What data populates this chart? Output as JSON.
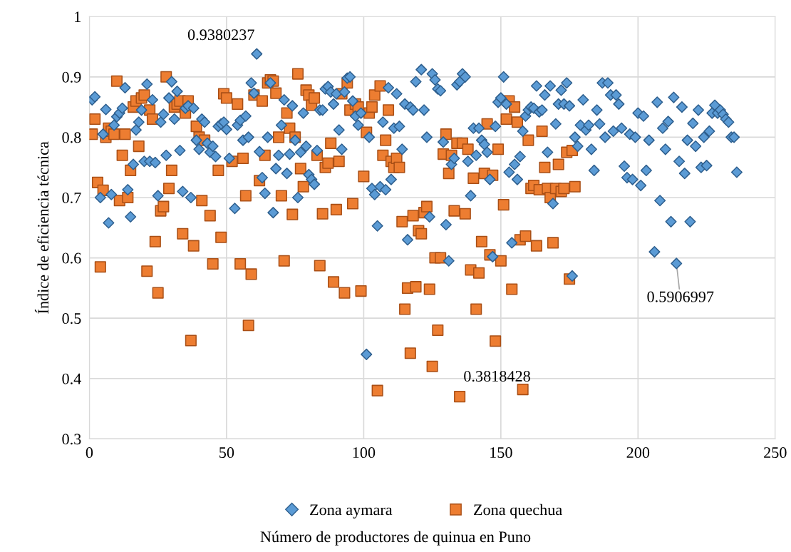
{
  "chart_data": {
    "type": "scatter",
    "xlabel": "Número de productores de quinua en Puno",
    "ylabel": "Índice de eficiencia técnica",
    "xlim": [
      0,
      250
    ],
    "xticks": [
      0,
      50,
      100,
      150,
      200,
      250
    ],
    "ylim": [
      0.3,
      1
    ],
    "yticks": [
      0.3,
      0.4,
      0.5,
      0.6,
      0.7,
      0.8,
      0.9,
      1
    ],
    "grid": true,
    "legend": "bottom",
    "annotations": [
      {
        "text": "0.9380237",
        "x": 61,
        "y": 0.9380237
      },
      {
        "text": "0.3818428",
        "x": 158,
        "y": 0.3818428
      },
      {
        "text": "0.5906997",
        "x": 214,
        "y": 0.5906997
      }
    ],
    "series": [
      {
        "name": "Zona aymara",
        "color": "#5b9bd5",
        "marker": "diamond",
        "x": [
          1,
          2,
          4,
          5,
          6,
          7,
          8,
          9,
          10,
          11,
          12,
          13,
          14,
          15,
          16,
          17,
          18,
          19,
          20,
          21,
          22,
          23,
          24,
          25,
          26,
          27,
          28,
          29,
          30,
          31,
          32,
          33,
          34,
          35,
          36,
          37,
          38,
          39,
          40,
          41,
          42,
          43,
          44,
          45,
          46,
          47,
          48,
          49,
          50,
          51,
          53,
          54,
          55,
          56,
          57,
          58,
          59,
          60,
          61,
          62,
          63,
          64,
          65,
          66,
          67,
          68,
          69,
          70,
          71,
          72,
          73,
          74,
          75,
          76,
          77,
          78,
          79,
          80,
          81,
          82,
          83,
          84,
          85,
          86,
          87,
          88,
          89,
          90,
          91,
          92,
          93,
          94,
          95,
          96,
          97,
          98,
          99,
          101,
          102,
          103,
          104,
          105,
          106,
          107,
          108,
          109,
          110,
          111,
          112,
          113,
          114,
          115,
          116,
          117,
          118,
          119,
          121,
          122,
          123,
          124,
          125,
          126,
          127,
          128,
          129,
          130,
          131,
          132,
          133,
          134,
          135,
          136,
          137,
          138,
          139,
          140,
          141,
          142,
          143,
          144,
          145,
          146,
          147,
          148,
          149,
          150,
          151,
          152,
          153,
          154,
          155,
          156,
          157,
          158,
          159,
          160,
          161,
          162,
          163,
          164,
          165,
          166,
          167,
          168,
          169,
          170,
          171,
          172,
          173,
          174,
          175,
          176,
          177,
          178,
          179,
          180,
          181,
          182,
          183,
          184,
          185,
          186,
          187,
          188,
          189,
          190,
          191,
          192,
          193,
          194,
          195,
          196,
          197,
          198,
          199,
          200,
          201,
          202,
          203,
          204,
          206,
          207,
          208,
          209,
          210,
          211,
          212,
          213,
          214,
          215,
          216,
          217,
          218,
          219,
          220,
          221,
          222,
          223,
          224,
          225,
          226,
          227,
          228,
          229,
          230,
          231,
          232,
          233,
          234,
          235,
          236
        ],
        "values": [
          0.862,
          0.867,
          0.7,
          0.805,
          0.846,
          0.658,
          0.705,
          0.82,
          0.834,
          0.84,
          0.848,
          0.882,
          0.713,
          0.668,
          0.755,
          0.812,
          0.825,
          0.845,
          0.76,
          0.888,
          0.76,
          0.862,
          0.758,
          0.703,
          0.825,
          0.838,
          0.77,
          0.865,
          0.892,
          0.83,
          0.876,
          0.778,
          0.71,
          0.848,
          0.852,
          0.7,
          0.848,
          0.795,
          0.78,
          0.83,
          0.825,
          0.79,
          0.775,
          0.785,
          0.768,
          0.818,
          0.822,
          0.825,
          0.813,
          0.765,
          0.682,
          0.82,
          0.828,
          0.795,
          0.835,
          0.8,
          0.89,
          0.873,
          0.9380237,
          0.776,
          0.733,
          0.707,
          0.8,
          0.89,
          0.675,
          0.748,
          0.77,
          0.82,
          0.862,
          0.74,
          0.772,
          0.852,
          0.795,
          0.7,
          0.775,
          0.84,
          0.785,
          0.738,
          0.73,
          0.722,
          0.778,
          0.845,
          0.845,
          0.88,
          0.884,
          0.875,
          0.855,
          0.872,
          0.812,
          0.78,
          0.875,
          0.898,
          0.9,
          0.86,
          0.835,
          0.82,
          0.84,
          0.44,
          0.8,
          0.715,
          0.705,
          0.653,
          0.718,
          0.825,
          0.713,
          0.882,
          0.73,
          0.815,
          0.872,
          0.818,
          0.78,
          0.855,
          0.63,
          0.85,
          0.845,
          0.892,
          0.912,
          0.845,
          0.8,
          0.668,
          0.905,
          0.895,
          0.88,
          0.877,
          0.792,
          0.655,
          0.595,
          0.755,
          0.765,
          0.887,
          0.892,
          0.905,
          0.9,
          0.76,
          0.703,
          0.815,
          0.77,
          0.815,
          0.795,
          0.788,
          0.775,
          0.73,
          0.602,
          0.818,
          0.858,
          0.865,
          0.9,
          0.855,
          0.742,
          0.625,
          0.755,
          0.73,
          0.768,
          0.81,
          0.835,
          0.845,
          0.85,
          0.848,
          0.885,
          0.842,
          0.845,
          0.87,
          0.775,
          0.885,
          0.69,
          0.822,
          0.855,
          0.878,
          0.855,
          0.89,
          0.852,
          0.57,
          0.8,
          0.785,
          0.82,
          0.862,
          0.812,
          0.82,
          0.78,
          0.745,
          0.845,
          0.822,
          0.89,
          0.8,
          0.89,
          0.87,
          0.81,
          0.87,
          0.855,
          0.815,
          0.752,
          0.733,
          0.805,
          0.73,
          0.8,
          0.84,
          0.72,
          0.835,
          0.745,
          0.795,
          0.61,
          0.858,
          0.695,
          0.815,
          0.78,
          0.826,
          0.66,
          0.866,
          0.5906997,
          0.76,
          0.85,
          0.74,
          0.795,
          0.66,
          0.823,
          0.785,
          0.845,
          0.75,
          0.8,
          0.753,
          0.81,
          0.84,
          0.853,
          0.84,
          0.845,
          0.838,
          0.83,
          0.825,
          0.8,
          0.8,
          0.742
        ]
      },
      {
        "name": "Zona quechua",
        "color": "#ed7d31",
        "marker": "square",
        "x": [
          1,
          2,
          3,
          4,
          5,
          6,
          7,
          8,
          9,
          10,
          11,
          12,
          13,
          14,
          15,
          16,
          17,
          18,
          19,
          20,
          21,
          22,
          23,
          24,
          25,
          26,
          27,
          28,
          29,
          30,
          31,
          32,
          33,
          34,
          35,
          36,
          37,
          38,
          39,
          40,
          41,
          42,
          44,
          45,
          47,
          48,
          49,
          50,
          52,
          54,
          55,
          56,
          57,
          58,
          59,
          60,
          62,
          63,
          64,
          65,
          66,
          67,
          68,
          69,
          70,
          71,
          72,
          73,
          74,
          75,
          76,
          77,
          78,
          79,
          80,
          81,
          82,
          83,
          84,
          85,
          86,
          87,
          88,
          89,
          90,
          91,
          92,
          93,
          94,
          95,
          96,
          97,
          98,
          99,
          100,
          101,
          102,
          103,
          104,
          105,
          106,
          107,
          108,
          109,
          110,
          111,
          112,
          113,
          114,
          115,
          116,
          117,
          118,
          119,
          120,
          121,
          122,
          123,
          124,
          125,
          126,
          127,
          128,
          129,
          130,
          131,
          132,
          133,
          134,
          135,
          136,
          137,
          138,
          139,
          140,
          141,
          142,
          143,
          144,
          145,
          146,
          147,
          148,
          149,
          150,
          151,
          152,
          153,
          154,
          155,
          156,
          157,
          158,
          159,
          160,
          161,
          162,
          163,
          164,
          165,
          166,
          167,
          168,
          169,
          170,
          171,
          172,
          173,
          174,
          175,
          176,
          177
        ],
        "values": [
          0.805,
          0.83,
          0.725,
          0.585,
          0.712,
          0.8,
          0.815,
          0.81,
          0.805,
          0.893,
          0.695,
          0.77,
          0.805,
          0.7,
          0.745,
          0.85,
          0.86,
          0.785,
          0.865,
          0.87,
          0.578,
          0.845,
          0.83,
          0.627,
          0.542,
          0.678,
          0.685,
          0.9,
          0.715,
          0.745,
          0.85,
          0.855,
          0.86,
          0.64,
          0.84,
          0.86,
          0.463,
          0.62,
          0.818,
          0.8,
          0.695,
          0.795,
          0.67,
          0.59,
          0.745,
          0.634,
          0.872,
          0.865,
          0.76,
          0.855,
          0.59,
          0.765,
          0.703,
          0.488,
          0.573,
          0.87,
          0.728,
          0.86,
          0.77,
          0.89,
          0.895,
          0.893,
          0.873,
          0.8,
          0.703,
          0.595,
          0.84,
          0.815,
          0.672,
          0.8,
          0.905,
          0.748,
          0.718,
          0.878,
          0.87,
          0.853,
          0.865,
          0.77,
          0.587,
          0.673,
          0.75,
          0.757,
          0.79,
          0.56,
          0.68,
          0.76,
          0.872,
          0.542,
          0.89,
          0.845,
          0.69,
          0.855,
          0.85,
          0.545,
          0.735,
          0.808,
          0.84,
          0.85,
          0.87,
          0.38,
          0.885,
          0.77,
          0.795,
          0.845,
          0.76,
          0.75,
          0.765,
          0.75,
          0.66,
          0.515,
          0.55,
          0.442,
          0.67,
          0.552,
          0.645,
          0.64,
          0.675,
          0.685,
          0.548,
          0.42,
          0.6,
          0.48,
          0.6,
          0.772,
          0.805,
          0.74,
          0.77,
          0.678,
          0.79,
          0.37,
          0.79,
          0.673,
          0.78,
          0.58,
          0.732,
          0.515,
          0.575,
          0.627,
          0.74,
          0.822,
          0.605,
          0.737,
          0.462,
          0.78,
          0.595,
          0.688,
          0.83,
          0.86,
          0.548,
          0.85,
          0.825,
          0.63,
          0.3818428,
          0.636,
          0.795,
          0.715,
          0.72,
          0.62,
          0.713,
          0.81,
          0.75,
          0.715,
          0.7,
          0.625,
          0.715,
          0.755,
          0.71,
          0.715,
          0.775,
          0.565,
          0.778,
          0.718
        ]
      }
    ]
  }
}
